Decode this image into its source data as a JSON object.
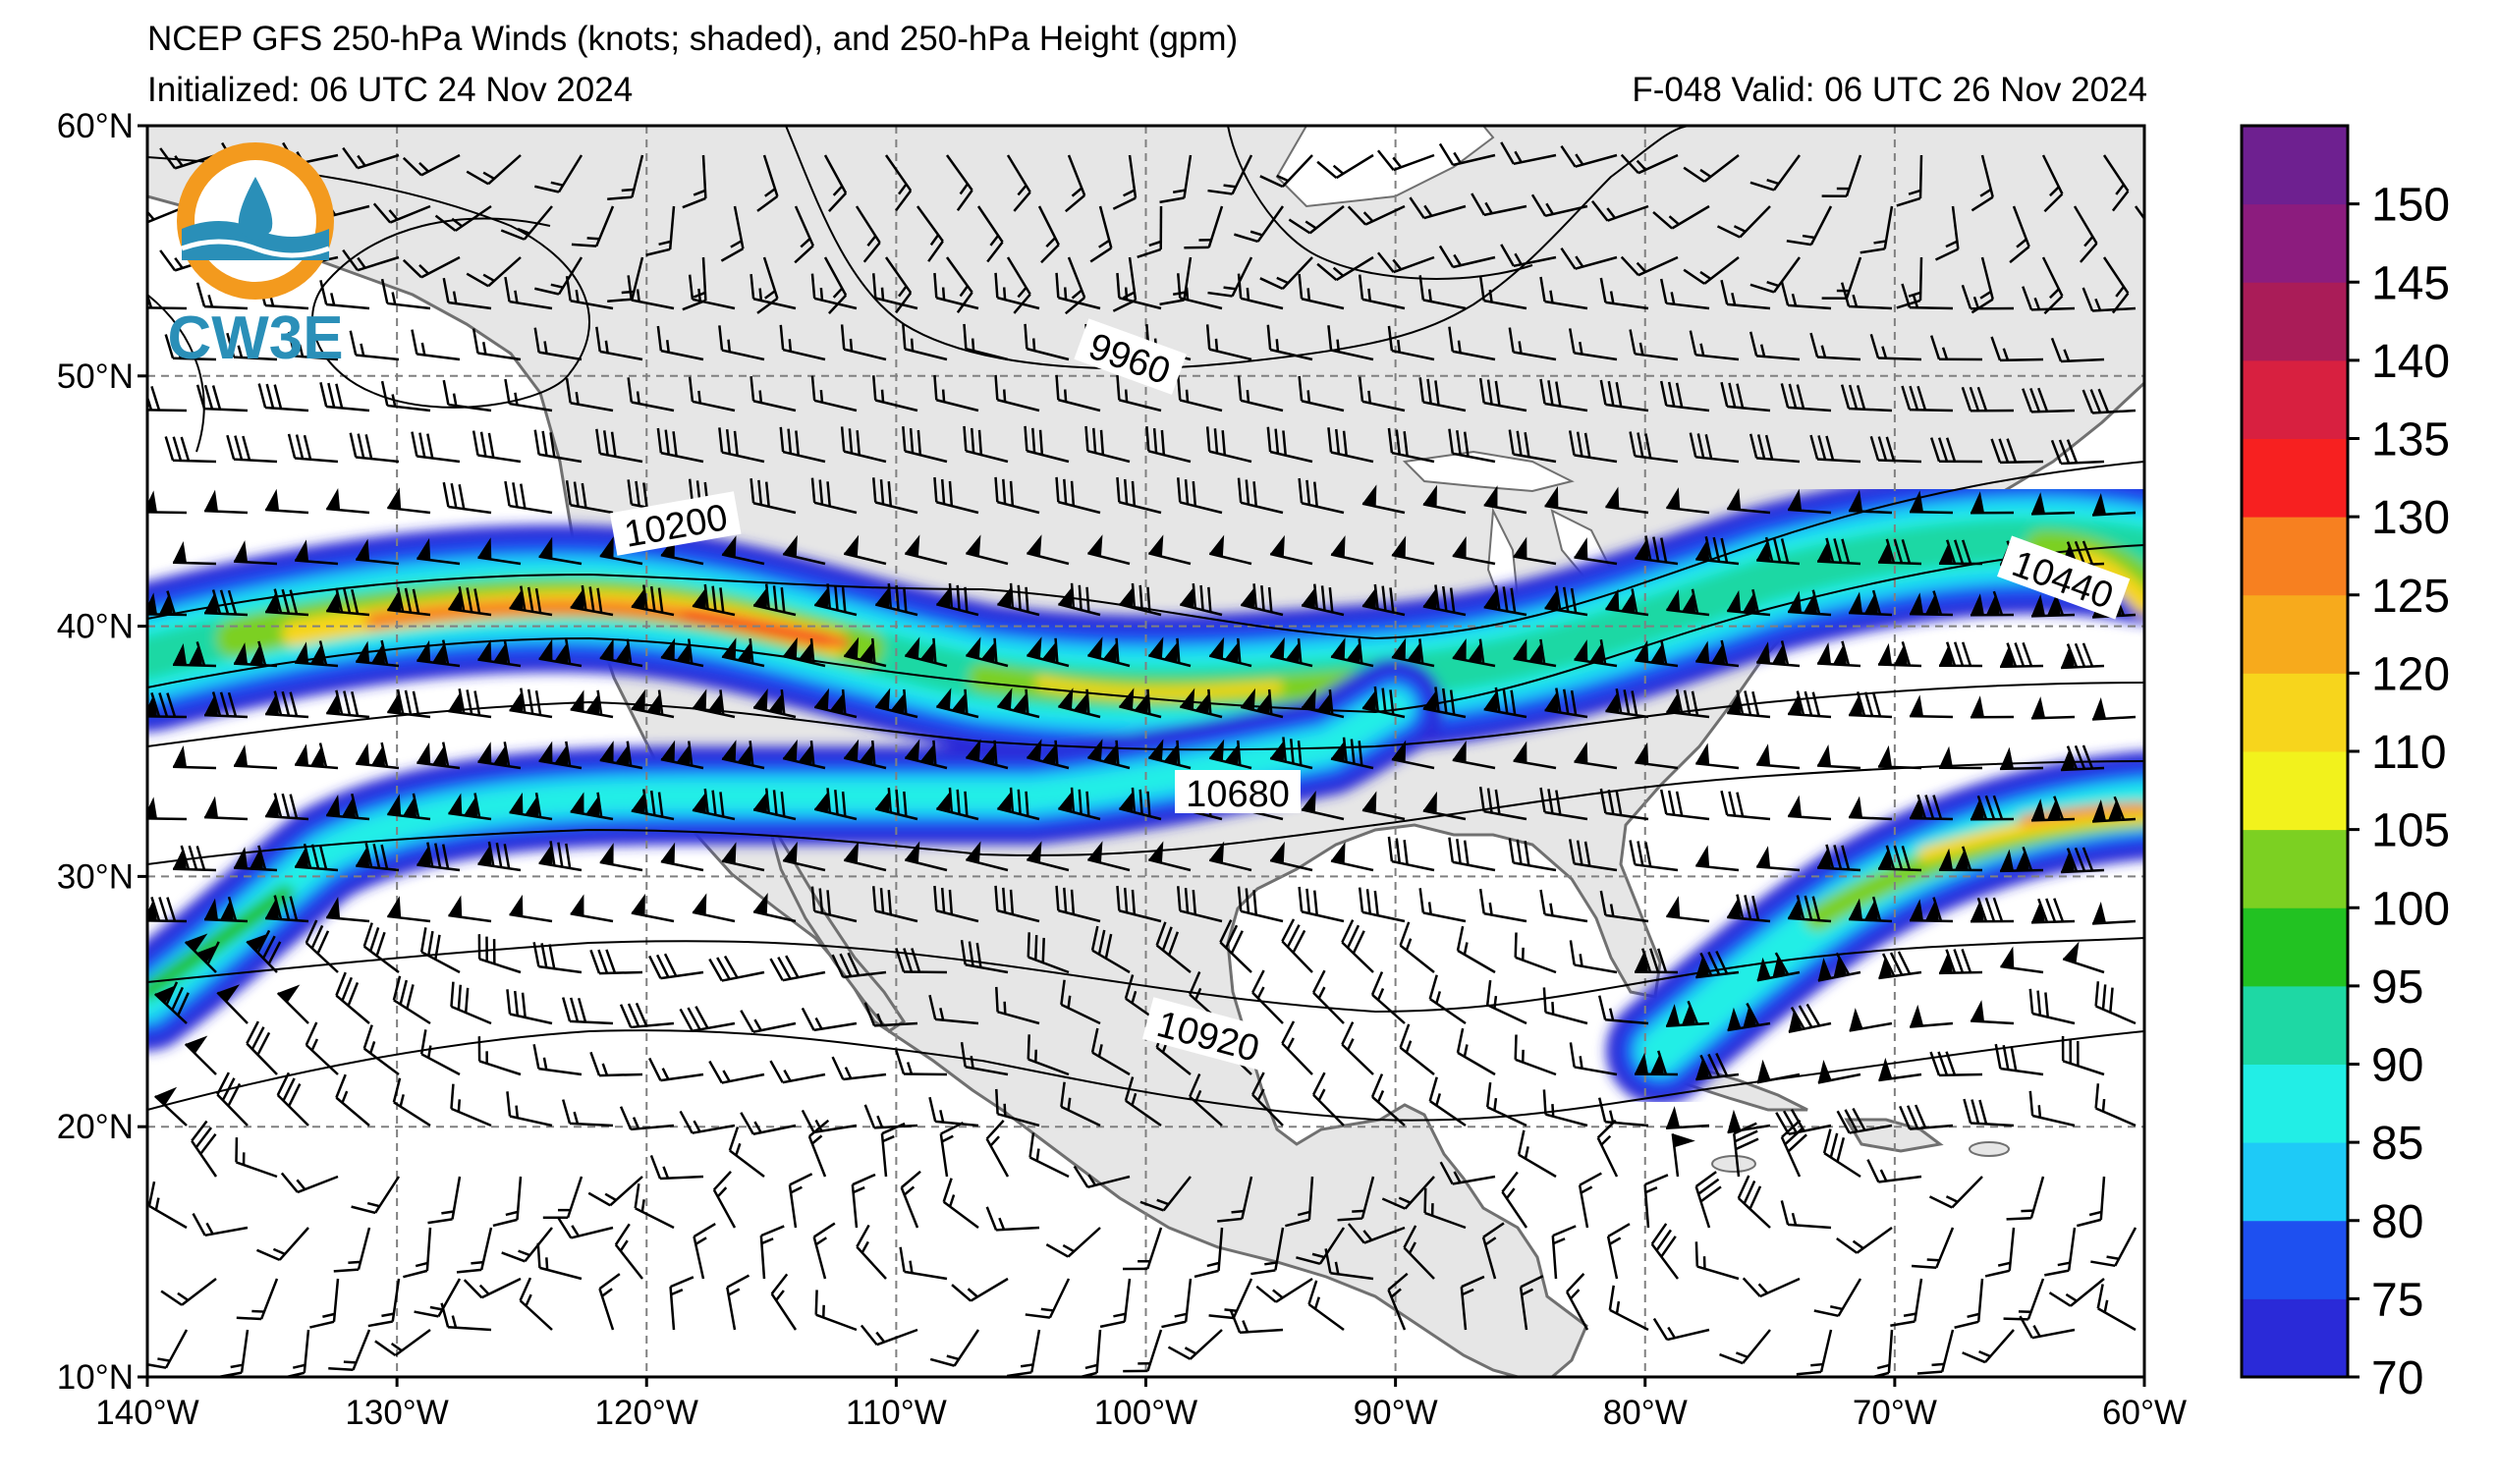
{
  "header": {
    "title": "NCEP GFS 250-hPa Winds (knots; shaded), and 250-hPa Height (gpm)",
    "initialized": "Initialized: 06 UTC 24 Nov 2024",
    "valid": "F-048  Valid: 06 UTC 26 Nov 2024"
  },
  "logo": {
    "text": "CW3E"
  },
  "map": {
    "projection": "equirectangular",
    "lon_range": [
      -140,
      -60
    ],
    "lat_range": [
      10,
      60
    ],
    "lat_ticks": [
      "60°N",
      "50°N",
      "40°N",
      "30°N",
      "20°N",
      "10°N"
    ],
    "lon_ticks": [
      "140°W",
      "130°W",
      "120°W",
      "110°W",
      "100°W",
      "90°W",
      "80°W",
      "70°W",
      "60°W"
    ],
    "lat_tick_values": [
      60,
      50,
      40,
      30,
      20,
      10
    ],
    "lon_tick_values": [
      -140,
      -130,
      -120,
      -110,
      -100,
      -90,
      -80,
      -70,
      -60
    ],
    "land_color": "#e6e6e6",
    "coast_color": "#707070"
  },
  "contours": {
    "units": "gpm",
    "labels": [
      "9960",
      "10200",
      "10440",
      "10680",
      "10920"
    ]
  },
  "colorbar": {
    "ticks": [
      "70",
      "75",
      "80",
      "85",
      "90",
      "95",
      "100",
      "105",
      "110",
      "120",
      "125",
      "130",
      "135",
      "140",
      "145",
      "150"
    ],
    "colors": [
      "#2a2ad8",
      "#1e50f0",
      "#1ecaf7",
      "#22eee6",
      "#1ed8a4",
      "#22c222",
      "#7cd022",
      "#f2f21c",
      "#f7d51c",
      "#f7aa1c",
      "#f78020",
      "#f72020",
      "#d82040",
      "#aa1c58",
      "#8c1c7e",
      "#6e2090"
    ]
  }
}
